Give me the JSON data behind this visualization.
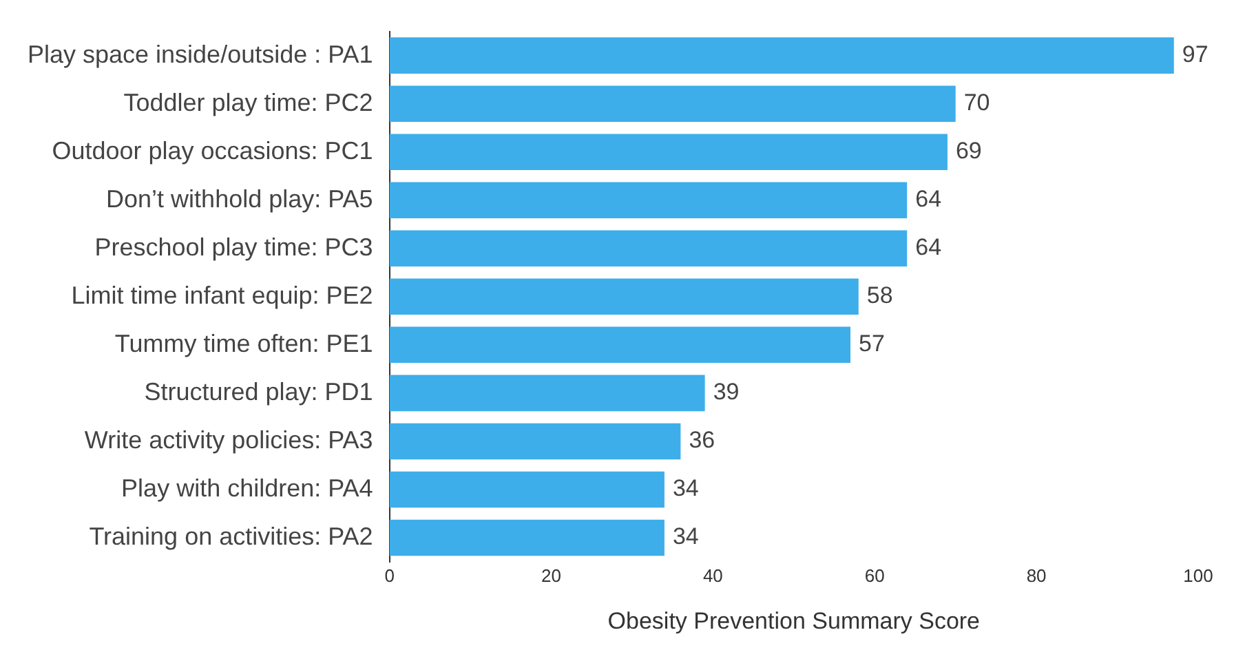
{
  "chart_data": {
    "type": "bar",
    "orientation": "horizontal",
    "xlabel": "Obesity Prevention Summary Score",
    "categories": [
      "Play space inside/outside : PA1",
      "Toddler play time: PC2",
      "Outdoor play occasions: PC1",
      "Don’t withhold play: PA5",
      "Preschool play time: PC3",
      "Limit time infant equip: PE2",
      "Tummy time often: PE1",
      "Structured play: PD1",
      "Write activity policies: PA3",
      "Play with children: PA4",
      "Training on activities: PA2"
    ],
    "values": [
      97,
      70,
      69,
      64,
      64,
      58,
      57,
      39,
      36,
      34,
      34
    ],
    "color": "#3daee9",
    "xlim": [
      0,
      100
    ],
    "xticks": [
      0,
      20,
      40,
      60,
      80,
      100
    ],
    "grid": false,
    "legend": false,
    "data_labels": true
  }
}
